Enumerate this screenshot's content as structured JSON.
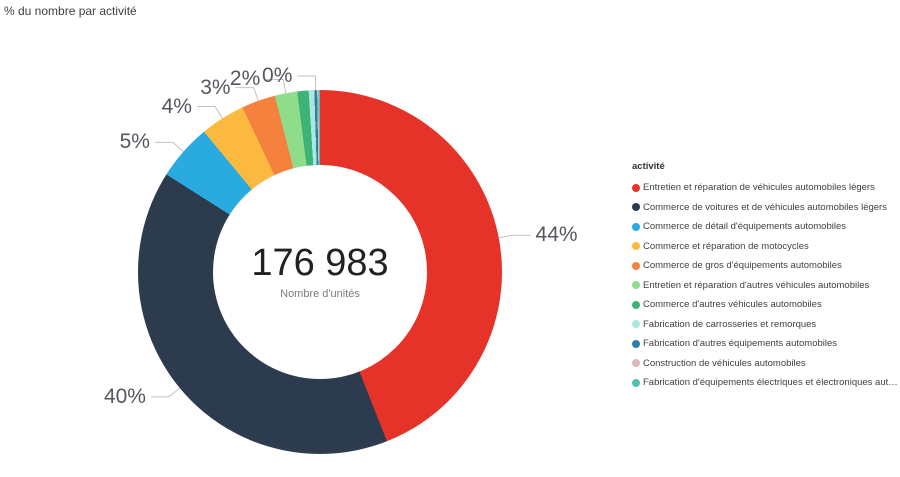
{
  "chart_data": {
    "type": "pie",
    "subtype": "donut",
    "title": "% du nombre par activité",
    "center_value": "176 983",
    "center_label": "Nombre d'unités",
    "legend_title": "activité",
    "legend_position": "right",
    "grid": false,
    "series": [
      {
        "name": "Entretien et réparation de véhicules automobiles légers",
        "value": 44,
        "color": "#e63329",
        "label": "44%"
      },
      {
        "name": "Commerce de voitures et de véhicules automobiles légers",
        "value": 40,
        "color": "#2c3b4d",
        "label": "40%"
      },
      {
        "name": "Commerce de détail d'équipements automobiles",
        "value": 5,
        "color": "#2aabdf",
        "label": "5%"
      },
      {
        "name": "Commerce et réparation de motocycles",
        "value": 4,
        "color": "#fbba3f",
        "label": "4%"
      },
      {
        "name": "Commerce de gros d'équipements automobiles",
        "value": 3,
        "color": "#f5813f",
        "label": "3%"
      },
      {
        "name": "Entretien et réparation d'autres véhicules automobiles",
        "value": 2,
        "color": "#8fdc8a",
        "label": "2%"
      },
      {
        "name": "Commerce d'autres véhicules automobiles",
        "value": 1,
        "color": "#3eb377",
        "label": null
      },
      {
        "name": "Fabrication de carrosseries et remorques",
        "value": 0.5,
        "color": "#a9e8e0",
        "label": null
      },
      {
        "name": "Fabrication d'autres équipements automobiles",
        "value": 0.25,
        "color": "#2e7fa8",
        "label": "0%"
      },
      {
        "name": "Construction de véhicules automobiles",
        "value": 0.12,
        "color": "#dcb8ba",
        "label": null
      },
      {
        "name": "Fabrication d'équipements électriques et électroniques auto…",
        "value": 0.13,
        "color": "#4ec2ad",
        "label": null
      }
    ]
  }
}
